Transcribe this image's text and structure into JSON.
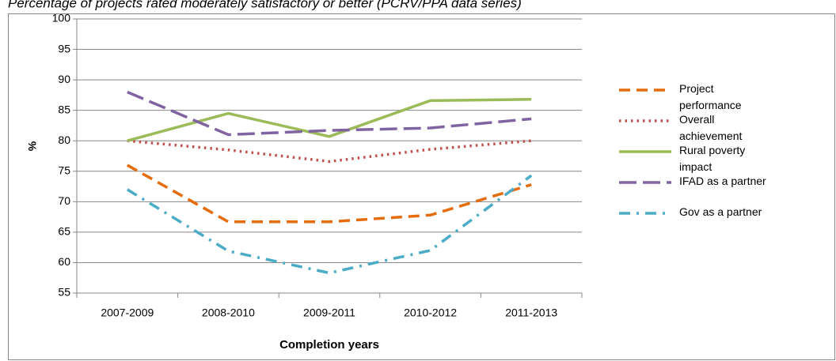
{
  "chart_data": {
    "type": "line",
    "title": "Percentage of projects rated moderately satisfactory or better (PCRV/PPA data series)",
    "x_label": "Completion years",
    "y_label": "%",
    "categories": [
      "2007-2009",
      "2008-2010",
      "2009-2011",
      "2010-2012",
      "2011-2013"
    ],
    "series": [
      {
        "name": "Project performance",
        "color": "#E46C0A",
        "dash": "dashed",
        "values": [
          76,
          66.7,
          66.7,
          67.8,
          72.8
        ]
      },
      {
        "name": "Overall achievement",
        "color": "#C0504D",
        "dash": "dotted",
        "values": [
          80,
          78.5,
          76.6,
          78.6,
          80
        ]
      },
      {
        "name": "Rural poverty impact",
        "color": "#9BBB59",
        "dash": "solid",
        "values": [
          80,
          84.5,
          80.7,
          86.6,
          86.8
        ]
      },
      {
        "name": "IFAD as a partner",
        "color": "#8064A2",
        "dash": "longdash",
        "values": [
          88,
          81,
          81.7,
          82.1,
          83.6
        ]
      },
      {
        "name": "Gov as a partner",
        "color": "#4BACC6",
        "dash": "dashdot",
        "values": [
          72,
          61.9,
          58.3,
          62,
          74.3
        ]
      }
    ],
    "ylim": [
      55,
      100
    ],
    "yticks": [
      55,
      60,
      65,
      70,
      75,
      80,
      85,
      90,
      95,
      100
    ],
    "grid": true,
    "legend": "right"
  }
}
